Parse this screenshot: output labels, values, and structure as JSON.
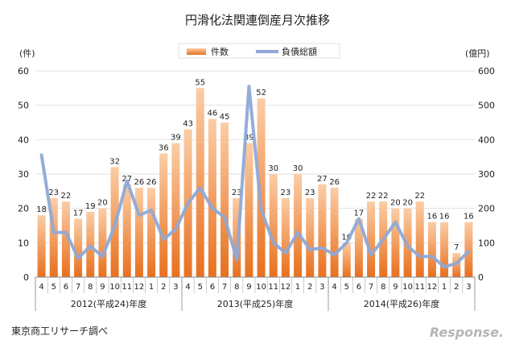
{
  "chart_data": {
    "type": "bar",
    "title": "円滑化法関連倒産月次推移",
    "ylabel": "(件)",
    "y2label": "(億円)",
    "ylim": [
      0,
      60
    ],
    "y2lim": [
      0,
      600
    ],
    "yticks": [
      0,
      10,
      20,
      30,
      40,
      50,
      60
    ],
    "y2ticks": [
      0,
      100,
      200,
      300,
      400,
      500,
      600
    ],
    "grid": true,
    "legend_position": "top-center",
    "categories": [
      "4",
      "5",
      "6",
      "7",
      "8",
      "9",
      "10",
      "11",
      "12",
      "1",
      "2",
      "3",
      "4",
      "5",
      "6",
      "7",
      "8",
      "9",
      "10",
      "11",
      "12",
      "1",
      "2",
      "3",
      "4",
      "5",
      "6",
      "7",
      "8",
      "9",
      "10",
      "11",
      "12",
      "1",
      "2",
      "3"
    ],
    "year_groups": [
      {
        "label": "2012(平成24)年度",
        "count": 12
      },
      {
        "label": "2013(平成25)年度",
        "count": 12
      },
      {
        "label": "2014(平成26)年度",
        "count": 12
      }
    ],
    "series": [
      {
        "name": "件数",
        "kind": "bar",
        "axis": "left",
        "color": "#F08A3C",
        "values": [
          18,
          23,
          22,
          17,
          19,
          20,
          32,
          27,
          26,
          26,
          36,
          39,
          43,
          55,
          46,
          45,
          23,
          39,
          52,
          30,
          23,
          30,
          23,
          27,
          26,
          10,
          17,
          22,
          22,
          20,
          20,
          22,
          16,
          16,
          7,
          16
        ]
      },
      {
        "name": "負債総額",
        "kind": "line",
        "axis": "right",
        "color": "#8EA9D6",
        "values": [
          355,
          130,
          130,
          55,
          90,
          60,
          150,
          280,
          180,
          195,
          110,
          140,
          215,
          260,
          200,
          175,
          50,
          555,
          195,
          100,
          70,
          130,
          80,
          85,
          65,
          100,
          170,
          65,
          110,
          160,
          90,
          60,
          60,
          30,
          40,
          75
        ]
      }
    ]
  },
  "footer": {
    "source": "東京商工リサーチ調べ",
    "watermark": "Response."
  }
}
